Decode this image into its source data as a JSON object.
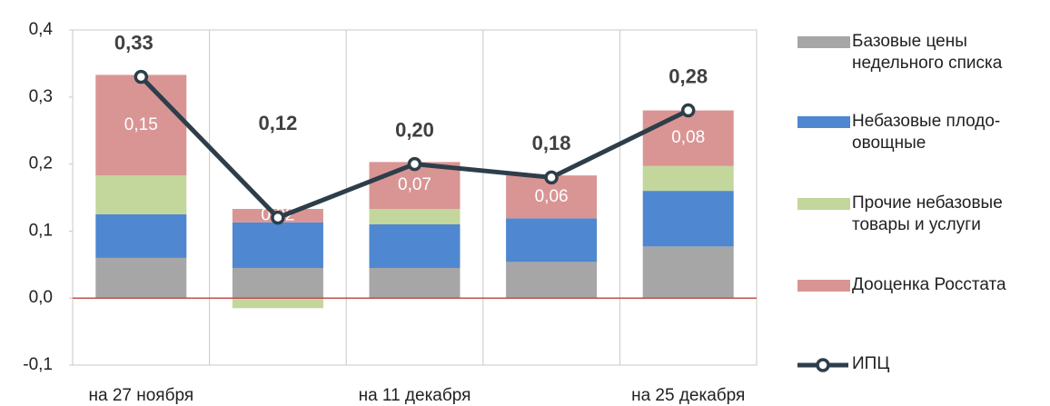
{
  "chart_data": {
    "type": "stacked-bar-line",
    "categories": [
      "на 27 ноября",
      null,
      "на 11 декабря",
      null,
      "на 25 декабря"
    ],
    "series": [
      {
        "name": "Базовые цены недельного списка",
        "color": "#a6a6a6",
        "values": [
          0.06,
          0.045,
          0.045,
          0.054,
          0.077
        ]
      },
      {
        "name": "Небазовые плодо-овощные",
        "color": "#4f87d0",
        "values": [
          0.065,
          0.068,
          0.065,
          0.065,
          0.083
        ]
      },
      {
        "name": "Прочие небазовые товары и услуги",
        "color": "#c3d69b",
        "values": [
          0.058,
          -0.015,
          0.023,
          0,
          0.037
        ]
      },
      {
        "name": "Дооценка Росстата",
        "color": "#d99594",
        "values": [
          0.15,
          0.02,
          0.07,
          0.064,
          0.083
        ],
        "value_labels": [
          "0,15",
          "0,02",
          "0,07",
          "0,06",
          "0,08"
        ]
      },
      {
        "name": "ИПЦ",
        "color": "#2d3e4a",
        "type": "line",
        "values": [
          0.33,
          0.12,
          0.2,
          0.18,
          0.28
        ],
        "value_labels": [
          "0,33",
          "0,12",
          "0,20",
          "0,18",
          "0,28"
        ]
      }
    ],
    "ylim": [
      -0.1,
      0.4
    ],
    "yticks": [
      {
        "value": -0.1,
        "label": "-0,1"
      },
      {
        "value": 0,
        "label": "0,0"
      },
      {
        "value": 0.1,
        "label": "0,1"
      },
      {
        "value": 0.2,
        "label": "0,2"
      },
      {
        "value": 0.3,
        "label": "0,3"
      },
      {
        "value": 0.4,
        "label": "0,4"
      }
    ],
    "legend": "right",
    "grid": "vertical"
  }
}
